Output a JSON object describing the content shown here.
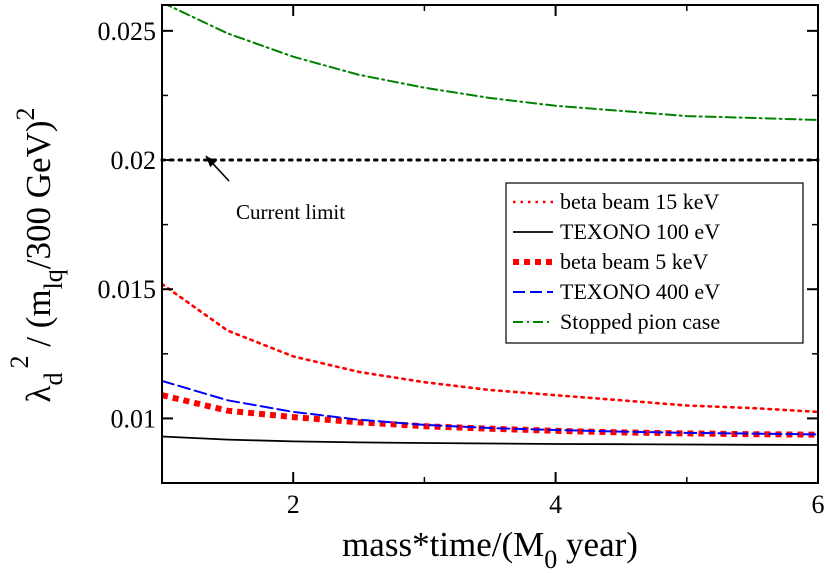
{
  "chart_data": {
    "type": "line",
    "xlabel": "mass*time/(M",
    "xlabel_sub": "0",
    "xlabel_tail": " year)",
    "ylabel": {
      "lambda": "λ",
      "sub_d": "d",
      "sup_2": "2",
      "mid": " / (m",
      "sub_lq": "lq",
      "tail": "/300 GeV)",
      "sup_end": "2"
    },
    "xlim": [
      1,
      6
    ],
    "ylim": [
      0.0075,
      0.026
    ],
    "x_ticks": [
      2,
      4,
      6
    ],
    "x_tick_labels": [
      "2",
      "4",
      "6"
    ],
    "y_ticks": [
      0.01,
      0.015,
      0.02,
      0.025
    ],
    "y_tick_labels": [
      "0.01",
      "0.015",
      "0.02",
      "0.025"
    ],
    "grid": false,
    "legend_position": "right",
    "x": [
      1.0,
      1.5,
      2.0,
      2.5,
      3.0,
      3.5,
      4.0,
      4.5,
      5.0,
      5.5,
      6.0
    ],
    "series": [
      {
        "name": "beta beam 15 keV",
        "color": "#ff0000",
        "style": "dotted",
        "values": [
          0.0152,
          0.0134,
          0.0124,
          0.0118,
          0.0114,
          0.0111,
          0.0109,
          0.0107,
          0.0105,
          0.0104,
          0.01025
        ]
      },
      {
        "name": "TEXONO 100 eV",
        "color": "#000000",
        "style": "solid",
        "values": [
          0.0093,
          0.00918,
          0.00911,
          0.00907,
          0.00905,
          0.00903,
          0.00901,
          0.009,
          0.00899,
          0.00898,
          0.00897
        ]
      },
      {
        "name": "beta beam 5 keV",
        "color": "#ff0000",
        "style": "thick-dotted",
        "values": [
          0.0109,
          0.0103,
          0.01005,
          0.00985,
          0.0097,
          0.0096,
          0.00952,
          0.00946,
          0.00942,
          0.00939,
          0.00937
        ]
      },
      {
        "name": "TEXONO 400 eV",
        "color": "#0000ff",
        "style": "dashed",
        "values": [
          0.01145,
          0.0107,
          0.01025,
          0.00995,
          0.00975,
          0.00963,
          0.00955,
          0.00949,
          0.00944,
          0.00941,
          0.00938
        ]
      },
      {
        "name": "Stopped pion case",
        "color": "#008000",
        "style": "dash-dot",
        "values": [
          0.0261,
          0.0249,
          0.024,
          0.0233,
          0.0228,
          0.0224,
          0.0221,
          0.0219,
          0.0217,
          0.02163,
          0.02155
        ]
      }
    ],
    "reference_line": {
      "y": 0.02,
      "color": "#000000",
      "style": "dotted"
    },
    "annotation": {
      "text": "Current limit",
      "arrow_to": [
        1.35,
        0.02
      ]
    }
  }
}
